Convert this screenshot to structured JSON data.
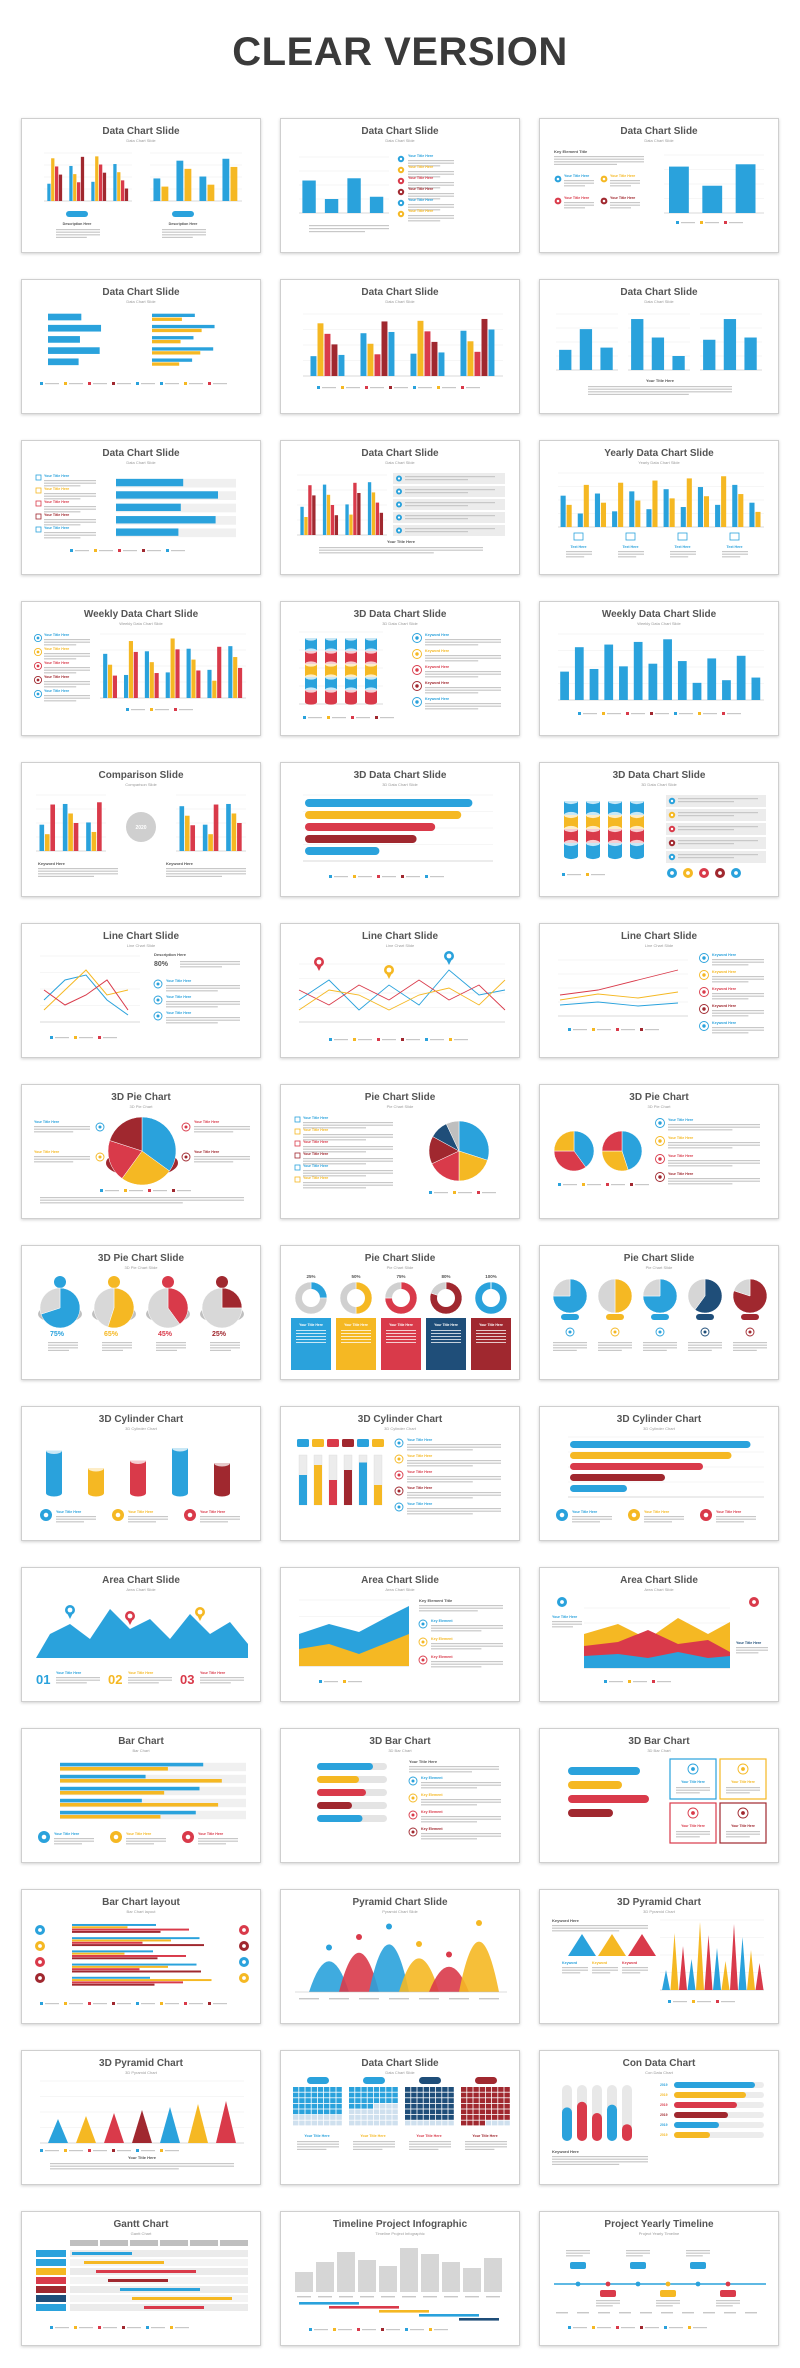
{
  "page_title": "CLEAR VERSION",
  "palette": {
    "blue": "#2aa2dc",
    "yellow": "#f5b823",
    "red": "#d93a4a",
    "darkred": "#a0282f",
    "navy": "#1f4e79",
    "grey": "#bfbfbf"
  },
  "slides": [
    {
      "title": "Data Chart Slide",
      "sub": "Data Chart Slide",
      "kind": "bars-duo"
    },
    {
      "title": "Data Chart Slide",
      "sub": "Data Chart Slide",
      "kind": "bars-list"
    },
    {
      "title": "Data Chart Slide",
      "sub": "Data Chart Slide",
      "kind": "text-bars"
    },
    {
      "title": "Data Chart Slide",
      "sub": "Data Chart Slide",
      "kind": "hbar-duo"
    },
    {
      "title": "Data Chart Slide",
      "sub": "Data Chart Slide",
      "kind": "bars-multi"
    },
    {
      "title": "Data Chart Slide",
      "sub": "Data Chart Slide",
      "kind": "bars-trio"
    },
    {
      "title": "Data Chart Slide",
      "sub": "Data Chart Slide",
      "kind": "check-hbar"
    },
    {
      "title": "Data Chart Slide",
      "sub": "Data Chart Slide",
      "kind": "bars-callout"
    },
    {
      "title": "Yearly Data Chart Slide",
      "sub": "Yearly Data Chart Slide",
      "kind": "bars-yearly"
    },
    {
      "title": "Weekly Data Chart Slide",
      "sub": "Weekly Data Chart Slide",
      "kind": "list-bars"
    },
    {
      "title": "3D Data Chart Slide",
      "sub": "3D Data Chart Slide",
      "kind": "stack3d"
    },
    {
      "title": "Weekly Data Chart Slide",
      "sub": "Weekly Data Chart Slide",
      "kind": "bars-weekly"
    },
    {
      "title": "Comparison Slide",
      "sub": "Comparison Slide",
      "kind": "compare"
    },
    {
      "title": "3D Data Chart Slide",
      "sub": "3D Data Chart Slide",
      "kind": "hbar3d"
    },
    {
      "title": "3D Data Chart Slide",
      "sub": "3D Data Chart Slide",
      "kind": "stack3d-b"
    },
    {
      "title": "Line Chart Slide",
      "sub": "Line Chart Slide",
      "kind": "line-a"
    },
    {
      "title": "Line Chart Slide",
      "sub": "Line Chart Slide",
      "kind": "line-b"
    },
    {
      "title": "Line Chart Slide",
      "sub": "Line Chart Slide",
      "kind": "line-c"
    },
    {
      "title": "3D Pie Chart",
      "sub": "3D Pie Chart",
      "kind": "pie3d"
    },
    {
      "title": "Pie Chart Slide",
      "sub": "Pie Chart Slide",
      "kind": "pie-list"
    },
    {
      "title": "3D Pie Chart",
      "sub": "3D Pie Chart",
      "kind": "pie-duo"
    },
    {
      "title": "3D Pie Chart Slide",
      "sub": "3D Pie Chart Slide",
      "kind": "pie-four"
    },
    {
      "title": "Pie Chart Slide",
      "sub": "Pie Chart Slide",
      "kind": "donut-five"
    },
    {
      "title": "Pie Chart Slide",
      "sub": "Pie Chart Slide",
      "kind": "pie-five"
    },
    {
      "title": "3D Cylinder Chart",
      "sub": "3D Cylinder Chart",
      "kind": "cyl-a"
    },
    {
      "title": "3D Cylinder Chart",
      "sub": "3D Cylinder Chart",
      "kind": "cyl-b"
    },
    {
      "title": "3D Cylinder Chart",
      "sub": "3D Cylinder Chart",
      "kind": "cyl-c"
    },
    {
      "title": "Area Chart Slide",
      "sub": "Area Chart Slide",
      "kind": "area-a"
    },
    {
      "title": "Area Chart Slide",
      "sub": "Area Chart Slide",
      "kind": "area-b"
    },
    {
      "title": "Area Chart Slide",
      "sub": "Area Chart Slide",
      "kind": "area-c"
    },
    {
      "title": "Bar Chart",
      "sub": "Bar Chart",
      "kind": "hbar-a"
    },
    {
      "title": "3D Bar Chart",
      "sub": "3D Bar Chart",
      "kind": "hbar-b"
    },
    {
      "title": "3D Bar Chart",
      "sub": "3D Bar Chart",
      "kind": "hbar-c"
    },
    {
      "title": "Bar Chart layout",
      "sub": "Bar Chart layout",
      "kind": "hbar-d"
    },
    {
      "title": "Pyramid Chart Slide",
      "sub": "Pyramid Chart Slide",
      "kind": "pyramid-a"
    },
    {
      "title": "3D Pyramid Chart",
      "sub": "3D Pyramid Chart",
      "kind": "pyramid-b"
    },
    {
      "title": "3D Pyramid Chart",
      "sub": "3D Pyramid Chart",
      "kind": "pyramid-c"
    },
    {
      "title": "Data Chart Slide",
      "sub": "Data Chart Slide",
      "kind": "waffle"
    },
    {
      "title": "Con Data Chart",
      "sub": "Con Data Chart",
      "kind": "con"
    },
    {
      "title": "Gantt Chart",
      "sub": "Gantt Chart",
      "kind": "gantt"
    },
    {
      "title": "Timeline Project Infographic",
      "sub": "Timeline Project Infographic",
      "kind": "timeline-a"
    },
    {
      "title": "Project Yearly Timeline",
      "sub": "Project Yearly Timeline",
      "kind": "timeline-b"
    }
  ],
  "labels": {
    "year_badge": "2020",
    "pct_a": "80%",
    "pie_pcts": [
      "75%",
      "65%",
      "45%",
      "25%"
    ],
    "donut_pcts": [
      "25%",
      "50%",
      "75%",
      "80%",
      "100%"
    ],
    "num_a": "01",
    "num_b": "02",
    "num_c": "03",
    "your_title": "Your Title Here",
    "keyword": "Keyword Here",
    "desc": "Description Here"
  }
}
